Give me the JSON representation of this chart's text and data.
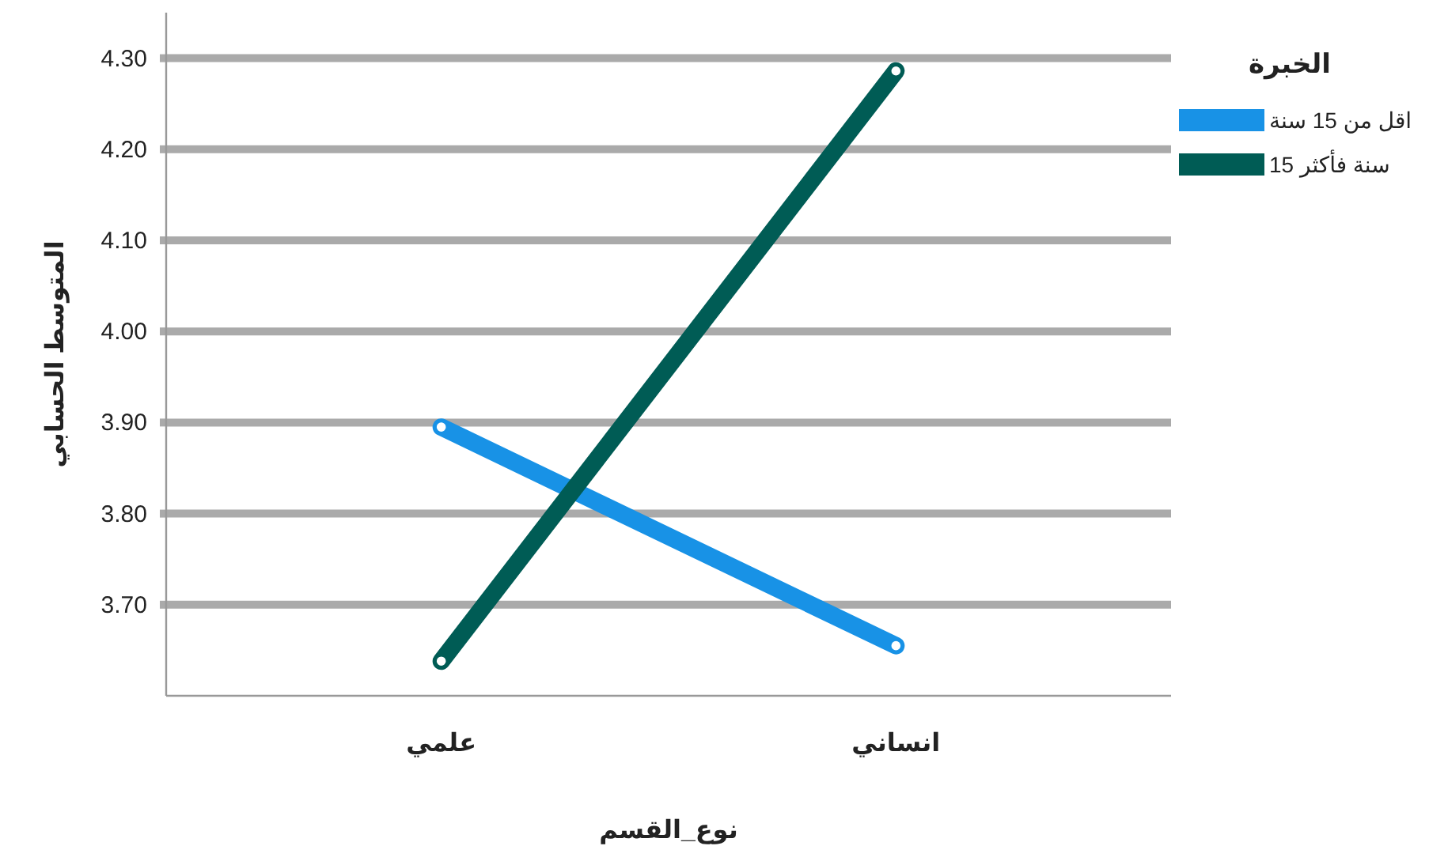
{
  "chart_data": {
    "type": "line",
    "xlabel": "نوع_القسم",
    "ylabel": "المتوسط الحسابي",
    "legend_title": "الخبرة",
    "categories": [
      "علمي",
      "انساني"
    ],
    "series": [
      {
        "name": "اقل من 15 سنة",
        "color": "#1892e6",
        "values": [
          3.895,
          3.655
        ]
      },
      {
        "name": "15 سنة فأكثر",
        "color": "#005c55",
        "values": [
          3.638,
          4.286
        ]
      }
    ],
    "ylim": [
      3.6,
      4.35
    ],
    "yticks": [
      {
        "value": 3.7,
        "label": "3.70"
      },
      {
        "value": 3.8,
        "label": "3.80"
      },
      {
        "value": 3.9,
        "label": "3.90"
      },
      {
        "value": 4.0,
        "label": "4.00"
      },
      {
        "value": 4.1,
        "label": "4.10"
      },
      {
        "value": 4.2,
        "label": "4.20"
      },
      {
        "value": 4.3,
        "label": "4.30"
      }
    ],
    "grid": "y",
    "legend": "top right",
    "marker": "circle",
    "line_style": "solid"
  }
}
